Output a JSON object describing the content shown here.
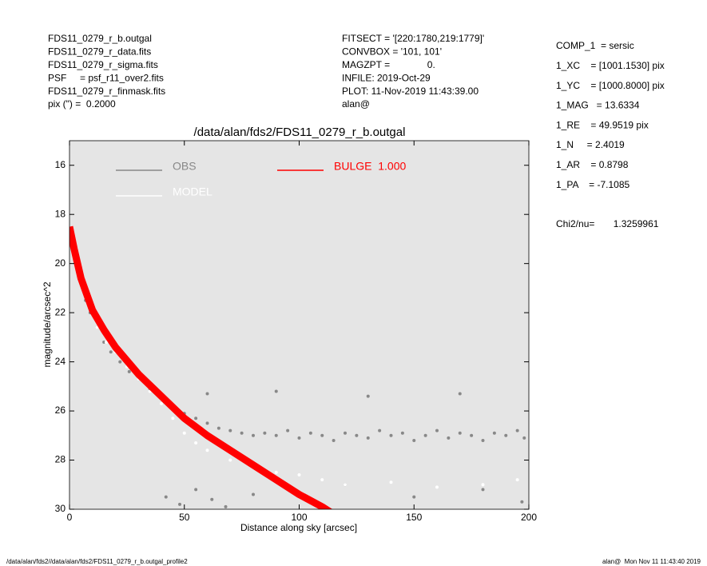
{
  "page": {
    "left_info": [
      "FDS11_0279_r_b.outgal",
      "FDS11_0279_r_data.fits",
      "FDS11_0279_r_sigma.fits",
      "PSF     = psf_r11_over2.fits",
      "FDS11_0279_r_finmask.fits",
      "pix (\") =  0.2000"
    ],
    "mid_info": [
      "FITSECT = '[220:1780,219:1779]'",
      "CONVBOX = '101, 101'",
      "MAGZPT =              0.",
      "INFILE: 2019-Oct-29",
      "PLOT: 11-Nov-2019 11:43:39.00",
      "alan@"
    ],
    "right_info": [
      "COMP_1  = sersic",
      "1_XC    = [1001.1530] pix",
      "1_YC    = [1000.8000] pix",
      "1_MAG   = 13.6334",
      "1_RE    = 49.9519 pix",
      "1_N     = 2.4019",
      "1_AR    = 0.8798",
      "1_PA    = -7.1085"
    ],
    "chi2": "Chi2/nu=       1.3259961",
    "footer_left": "/data/alan/fds2//data/alan/fds2/FDS11_0279_r_b.outgal_profile2",
    "footer_right": "alan@  Mon Nov 11 11:43:40 2019"
  },
  "chart_data": {
    "type": "scatter",
    "title": "/data/alan/fds2/FDS11_0279_r_b.outgal",
    "x_label": "Distance along sky [arcsec]",
    "y_label": "magnitude/arcsec^2",
    "xlim": [
      0,
      200
    ],
    "xticks": [
      0,
      50,
      100,
      150,
      200
    ],
    "ylim": [
      30,
      15
    ],
    "yticks": [
      16,
      18,
      20,
      22,
      24,
      26,
      28,
      30
    ],
    "grid": false,
    "background": "#e5e5e5",
    "series": [
      {
        "name": "OBS",
        "color": "#888888",
        "kind": "points",
        "x": [
          1,
          3,
          5,
          7,
          9,
          12,
          15,
          18,
          22,
          26,
          30,
          35,
          40,
          45,
          50,
          55,
          60,
          65,
          70,
          75,
          80,
          85,
          90,
          95,
          100,
          105,
          110,
          115,
          120,
          125,
          130,
          135,
          140,
          145,
          150,
          155,
          160,
          165,
          170,
          175,
          180,
          185,
          190,
          195,
          198,
          42,
          48,
          55,
          62,
          68,
          80,
          120,
          150,
          180,
          197,
          60,
          90,
          130,
          170
        ],
        "values": [
          19.0,
          20.0,
          20.8,
          21.5,
          22.0,
          22.6,
          23.2,
          23.6,
          24.0,
          24.4,
          24.7,
          25.1,
          25.5,
          25.8,
          26.1,
          26.3,
          26.5,
          26.7,
          26.8,
          26.9,
          27.0,
          26.9,
          27.0,
          26.8,
          27.1,
          26.9,
          27.0,
          27.2,
          26.9,
          27.0,
          27.1,
          26.8,
          27.0,
          26.9,
          27.2,
          27.0,
          26.8,
          27.1,
          26.9,
          27.0,
          27.2,
          26.9,
          27.0,
          26.8,
          27.1,
          29.5,
          29.8,
          29.2,
          29.6,
          29.9,
          29.4,
          29.0,
          29.5,
          29.2,
          29.7,
          25.3,
          25.2,
          25.4,
          25.3
        ]
      },
      {
        "name": "MODEL",
        "color": "#ffffff",
        "kind": "points",
        "x": [
          2,
          5,
          8,
          12,
          16,
          20,
          25,
          30,
          35,
          40,
          45,
          50,
          55,
          60,
          70,
          80,
          90,
          100,
          110,
          120,
          140,
          160,
          180,
          195
        ],
        "values": [
          19.5,
          20.7,
          21.6,
          22.6,
          23.2,
          23.6,
          24.2,
          24.7,
          25.2,
          25.7,
          26.3,
          26.9,
          27.3,
          27.6,
          28.0,
          28.3,
          28.5,
          28.6,
          28.8,
          29.0,
          28.9,
          29.1,
          29.0,
          28.8
        ]
      },
      {
        "name": "BULGE  1.000",
        "color": "#ff0000",
        "kind": "line",
        "x": [
          0,
          2,
          5,
          10,
          15,
          20,
          30,
          40,
          50,
          60,
          70,
          80,
          90,
          100,
          110,
          115
        ],
        "values": [
          18.5,
          19.4,
          20.6,
          21.9,
          22.7,
          23.4,
          24.5,
          25.4,
          26.3,
          27.0,
          27.6,
          28.2,
          28.8,
          29.4,
          29.9,
          30.2
        ]
      }
    ]
  }
}
